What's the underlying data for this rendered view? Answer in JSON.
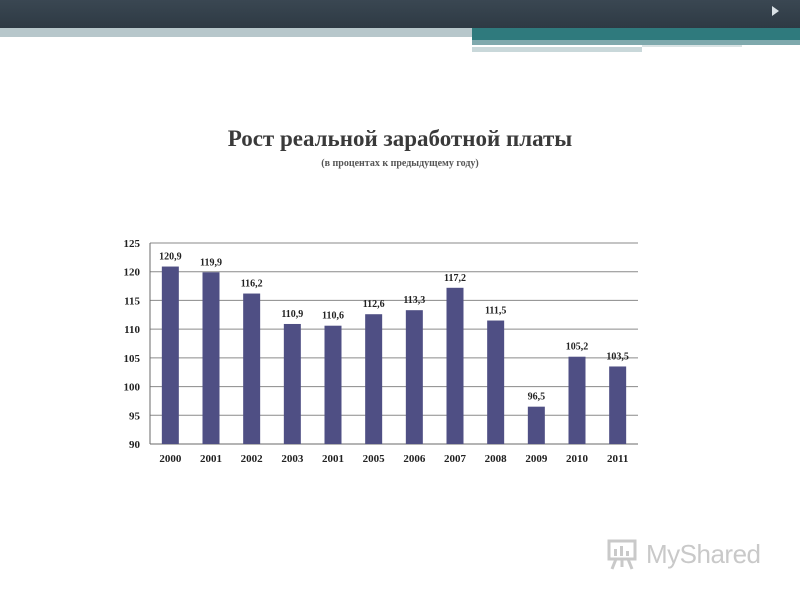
{
  "header": {
    "accent_dark": "#2e3a44",
    "accent_teal": "#2f7a7d"
  },
  "slide": {
    "title": "Рост реальной заработной платы",
    "subtitle": "(в процентах к предыдущему году)"
  },
  "chart_data": {
    "type": "bar",
    "categories": [
      "2000",
      "2001",
      "2002",
      "2003",
      "2001",
      "2005",
      "2006",
      "2007",
      "2008",
      "2009",
      "2010",
      "2011"
    ],
    "values": [
      120.9,
      119.9,
      116.2,
      110.9,
      110.6,
      112.6,
      113.3,
      117.2,
      111.5,
      96.5,
      105.2,
      103.5
    ],
    "value_labels": [
      "120,9",
      "119,9",
      "116,2",
      "110,9",
      "110,6",
      "112,6",
      "113,3",
      "117,2",
      "111,5",
      "96,5",
      "105,2",
      "103,5"
    ],
    "ylim": [
      90,
      125
    ],
    "yticks": [
      90,
      95,
      100,
      105,
      110,
      115,
      120,
      125
    ],
    "grid": true,
    "legend": "none",
    "bar_color": "#4f4f84",
    "xlabel": "",
    "ylabel": ""
  },
  "logo": {
    "text": "MyShared",
    "icon": "presentation-board-icon"
  }
}
